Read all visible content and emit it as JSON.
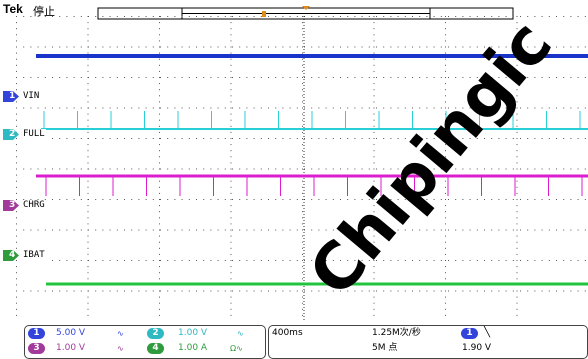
{
  "header": {
    "brand": "Tek",
    "acq_state": "停止"
  },
  "channels": [
    {
      "num": "1",
      "label": "VIN",
      "color": "#1a33c8",
      "marker_color": "#3344dd"
    },
    {
      "num": "2",
      "label": "FULL",
      "color": "#29cfd6",
      "marker_color": "#2fb9c3"
    },
    {
      "num": "3",
      "label": "CHRG",
      "color": "#dd1ccf",
      "marker_color": "#a13a9b"
    },
    {
      "num": "4",
      "label": "IBAT",
      "color": "#22c43c",
      "marker_color": "#2f9b3c"
    }
  ],
  "scales": {
    "ch1": {
      "num": "1",
      "value": "5.00 V",
      "color": "#3344dd"
    },
    "ch2": {
      "num": "2",
      "value": "1.00 V",
      "color": "#2fb9c3"
    },
    "ch3": {
      "num": "3",
      "value": "1.00 V",
      "color": "#a13a9b"
    },
    "ch4": {
      "num": "4",
      "value": "1.00 A",
      "color": "#2f9b3c",
      "suffix": "Ω"
    }
  },
  "timebase": "400ms",
  "sample_rate": "1.25M次/秒",
  "record_length": "5M 点",
  "trigger": {
    "source": "1",
    "level": "1.90 V",
    "slope": "falling"
  },
  "watermark": "Chipingic"
}
